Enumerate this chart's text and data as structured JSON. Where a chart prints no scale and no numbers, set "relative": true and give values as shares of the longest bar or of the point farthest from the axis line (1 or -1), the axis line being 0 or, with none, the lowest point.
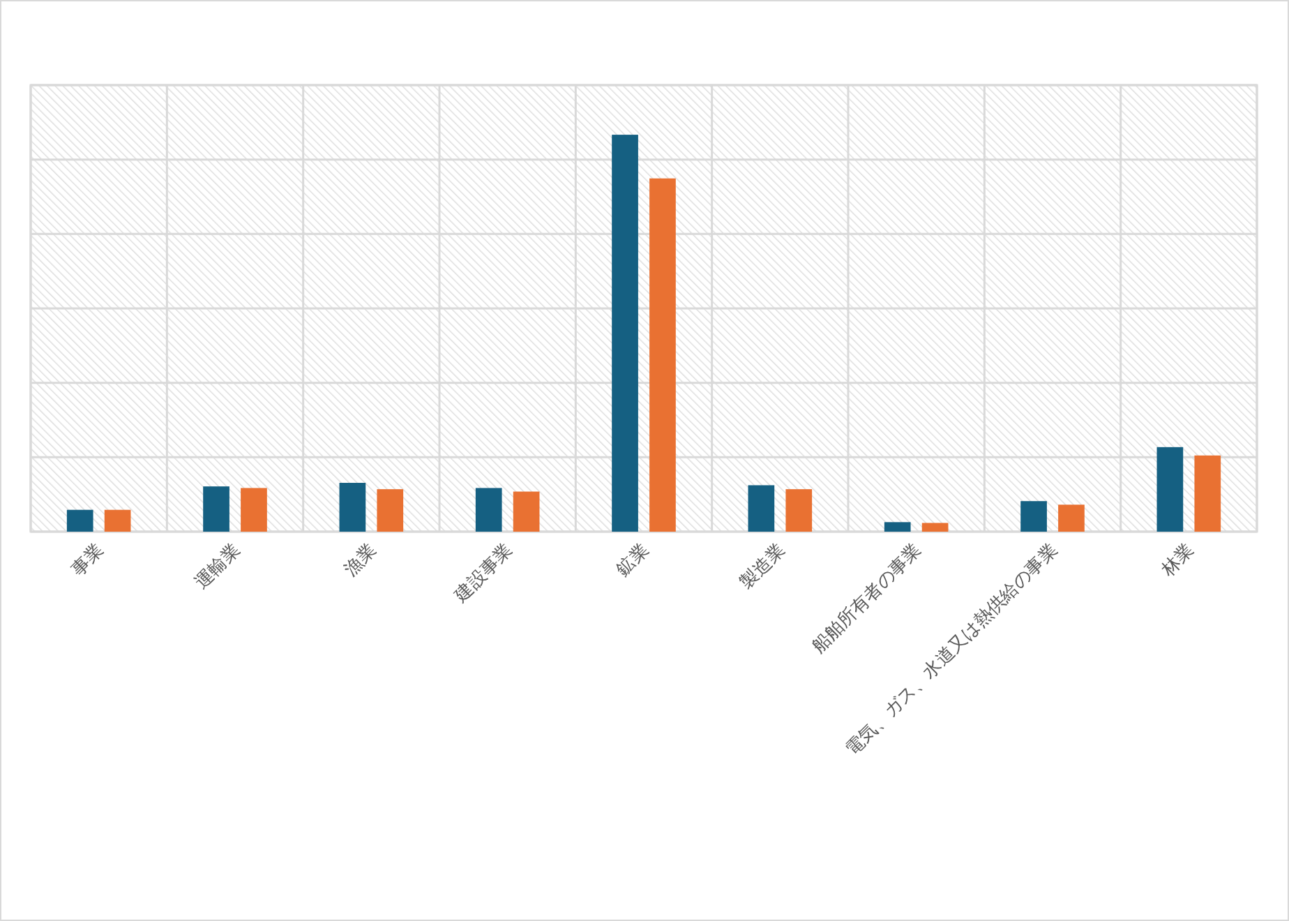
{
  "chart_data": {
    "type": "bar",
    "categories": [
      "事業",
      "運輸業",
      "漁業",
      "建設事業",
      "鉱業",
      "製造業",
      "船舶所有者の事業",
      "電気、ガス、水道又は熱供給の事業",
      "林業"
    ],
    "relative": true,
    "series": [
      {
        "color": "#156082",
        "values": [
          0.055,
          0.114,
          0.123,
          0.11,
          1,
          0.117,
          0.024,
          0.077,
          0.213
        ]
      },
      {
        "color": "#e97132",
        "values": [
          0.055,
          0.11,
          0.107,
          0.101,
          0.89,
          0.107,
          0.022,
          0.068,
          0.192
        ]
      }
    ],
    "grid": true
  }
}
